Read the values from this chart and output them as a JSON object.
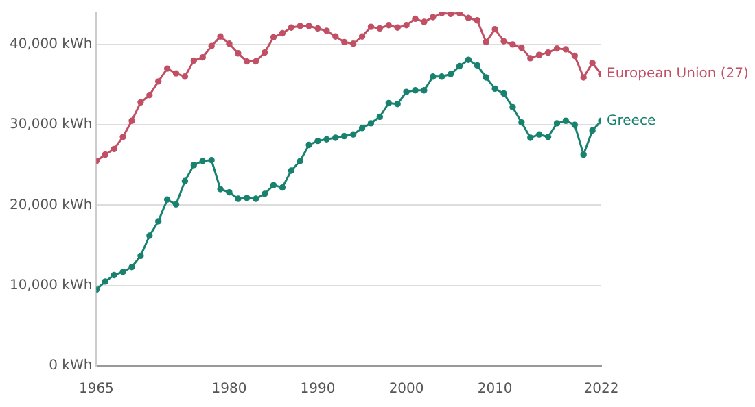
{
  "chart_data": {
    "type": "line",
    "x": [
      1965,
      1966,
      1967,
      1968,
      1969,
      1970,
      1971,
      1972,
      1973,
      1974,
      1975,
      1976,
      1977,
      1978,
      1979,
      1980,
      1981,
      1982,
      1983,
      1984,
      1985,
      1986,
      1987,
      1988,
      1989,
      1990,
      1991,
      1992,
      1993,
      1994,
      1995,
      1996,
      1997,
      1998,
      1999,
      2000,
      2001,
      2002,
      2003,
      2004,
      2005,
      2006,
      2007,
      2008,
      2009,
      2010,
      2011,
      2012,
      2013,
      2014,
      2015,
      2016,
      2017,
      2018,
      2019,
      2020,
      2021,
      2022
    ],
    "series": [
      {
        "name": "European Union (27)",
        "color": "#c15065",
        "values": [
          25500,
          26300,
          27000,
          28500,
          30500,
          32800,
          33700,
          35400,
          37000,
          36400,
          36000,
          38000,
          38400,
          39800,
          41000,
          40100,
          38900,
          37900,
          37900,
          39000,
          40900,
          41400,
          42100,
          42300,
          42300,
          42000,
          41700,
          41000,
          40300,
          40100,
          41000,
          42200,
          42000,
          42400,
          42100,
          42400,
          43200,
          42800,
          43400,
          43900,
          43800,
          43900,
          43300,
          43000,
          40300,
          41900,
          40400,
          40000,
          39600,
          38300,
          38700,
          39000,
          39500,
          39400,
          38600,
          35900,
          37700,
          36300
        ]
      },
      {
        "name": "Greece",
        "color": "#18826f",
        "values": [
          9500,
          10500,
          11300,
          11700,
          12300,
          13700,
          16200,
          18000,
          20700,
          20100,
          23000,
          25000,
          25500,
          25600,
          22000,
          21600,
          20800,
          20900,
          20800,
          21400,
          22500,
          22200,
          24300,
          25500,
          27500,
          28000,
          28200,
          28400,
          28600,
          28800,
          29600,
          30200,
          31000,
          32700,
          32600,
          34100,
          34300,
          34300,
          36000,
          36000,
          36300,
          37300,
          38100,
          37400,
          35900,
          34500,
          33900,
          32200,
          30300,
          28400,
          28800,
          28500,
          30200,
          30500,
          30000,
          26300,
          29300,
          30500
        ]
      }
    ],
    "xlim": [
      1965,
      2022
    ],
    "xticks": [
      1965,
      1980,
      1990,
      2000,
      2010,
      2022
    ],
    "ylim": [
      0,
      44000
    ],
    "yticks": [
      {
        "value": 0,
        "label": "0 kWh"
      },
      {
        "value": 10000,
        "label": "10,000 kWh"
      },
      {
        "value": 20000,
        "label": "20,000 kWh"
      },
      {
        "value": 30000,
        "label": "30,000 kWh"
      },
      {
        "value": 40000,
        "label": "40,000 kWh"
      }
    ],
    "grid": "y",
    "legend": false,
    "marker": "circle",
    "line_style": "solid"
  }
}
